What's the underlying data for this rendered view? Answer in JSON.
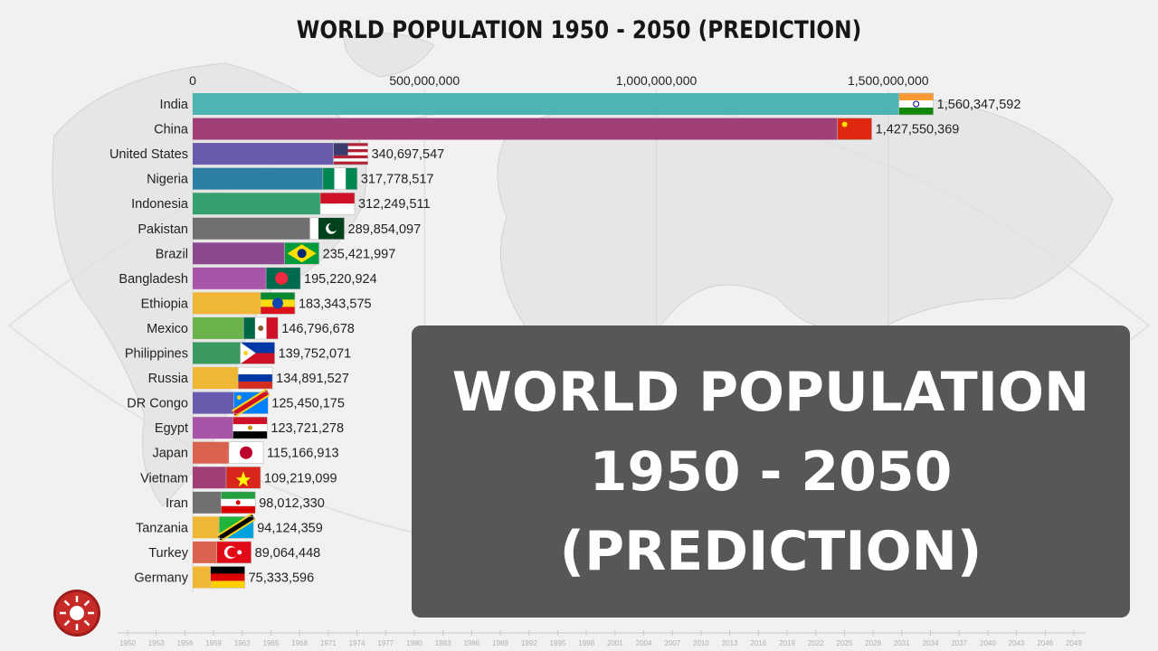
{
  "chart_data": {
    "type": "bar",
    "orientation": "horizontal",
    "title": "WORLD POPULATION 1950 - 2050 (PREDICTION)",
    "xlim": [
      0,
      1600000000
    ],
    "x_ticks": [
      {
        "value": 0,
        "label": "0"
      },
      {
        "value": 500000000,
        "label": "500,000,000"
      },
      {
        "value": 1000000000,
        "label": "1,000,000,000"
      },
      {
        "value": 1500000000,
        "label": "1,500,000,000"
      }
    ],
    "grid": true,
    "categories": [
      "India",
      "China",
      "United States",
      "Nigeria",
      "Indonesia",
      "Pakistan",
      "Brazil",
      "Bangladesh",
      "Ethiopia",
      "Mexico",
      "Philippines",
      "Russia",
      "DR Congo",
      "Egypt",
      "Japan",
      "Vietnam",
      "Iran",
      "Tanzania",
      "Turkey",
      "Germany"
    ],
    "values": [
      1560347592,
      1427550369,
      340697547,
      317778517,
      312249511,
      289854097,
      235421997,
      195220924,
      183343575,
      146796678,
      139752071,
      134891527,
      125450175,
      123721278,
      115166913,
      109219099,
      98012330,
      94124359,
      89064448,
      75333596
    ],
    "value_labels": [
      "1,560,347,592",
      "1,427,550,369",
      "340,697,547",
      "317,778,517",
      "312,249,511",
      "289,854,097",
      "235,421,997",
      "195,220,924",
      "183,343,575",
      "146,796,678",
      "139,752,071",
      "134,891,527",
      "125,450,175",
      "123,721,278",
      "115,166,913",
      "109,219,099",
      "98,012,330",
      "94,124,359",
      "89,064,448",
      "75,333,596"
    ],
    "bar_colors": [
      "#4db3b3",
      "#a03f75",
      "#6a5aad",
      "#2d7fa3",
      "#37a071",
      "#707070",
      "#8b4a8f",
      "#a855a8",
      "#f0b735",
      "#6ab34b",
      "#3a9a5f",
      "#f0b735",
      "#6a5aad",
      "#a855a8",
      "#d9634e",
      "#a03f75",
      "#707070",
      "#f0b735",
      "#d9634e",
      "#f0b735"
    ],
    "timeline_years": [
      "1950",
      "1953",
      "1956",
      "1959",
      "1962",
      "1965",
      "1968",
      "1971",
      "1974",
      "1977",
      "1980",
      "1983",
      "1986",
      "1989",
      "1992",
      "1995",
      "1998",
      "2001",
      "2004",
      "2007",
      "2010",
      "2013",
      "2016",
      "2019",
      "2022",
      "2025",
      "2028",
      "2031",
      "2034",
      "2037",
      "2040",
      "2043",
      "2046",
      "2049"
    ]
  },
  "overlay": {
    "line1": "WORLD POPULATION",
    "line2": "1950 - 2050",
    "line3": "(PREDICTION)"
  },
  "icons": [
    "globe-map-background",
    "sun-logo-icon",
    "country-flag-icons"
  ]
}
